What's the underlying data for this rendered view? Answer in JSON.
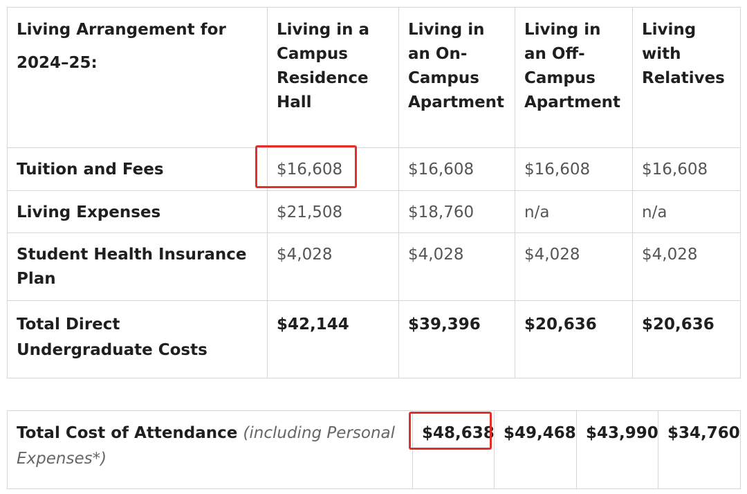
{
  "direct_costs_table": {
    "header": {
      "corner": "Living Arrangement for 2024–25:",
      "columns": [
        "Living in a Campus Residence Hall",
        "Living in an On-Campus Apartment",
        "Living in an Off-Campus Apartment",
        "Living with Relatives"
      ]
    },
    "rows": [
      {
        "label": "Tuition and Fees",
        "values": [
          "$16,608",
          "$16,608",
          "$16,608",
          "$16,608"
        ]
      },
      {
        "label": "Living Expenses",
        "values": [
          "$21,508",
          "$18,760",
          "n/a",
          "n/a"
        ]
      },
      {
        "label": "Student Health Insurance Plan",
        "values": [
          "$4,028",
          "$4,028",
          "$4,028",
          "$4,028"
        ]
      },
      {
        "label": "Total Direct Undergraduate Costs",
        "values": [
          "$42,144",
          "$39,396",
          "$20,636",
          "$20,636"
        ]
      }
    ]
  },
  "attendance_table": {
    "label": "Total Cost of Attendance",
    "note": "(including Personal Expenses*)",
    "values": [
      "$48,638",
      "$49,468",
      "$43,990",
      "$34,760"
    ]
  },
  "highlight_color": "#e32f2a"
}
